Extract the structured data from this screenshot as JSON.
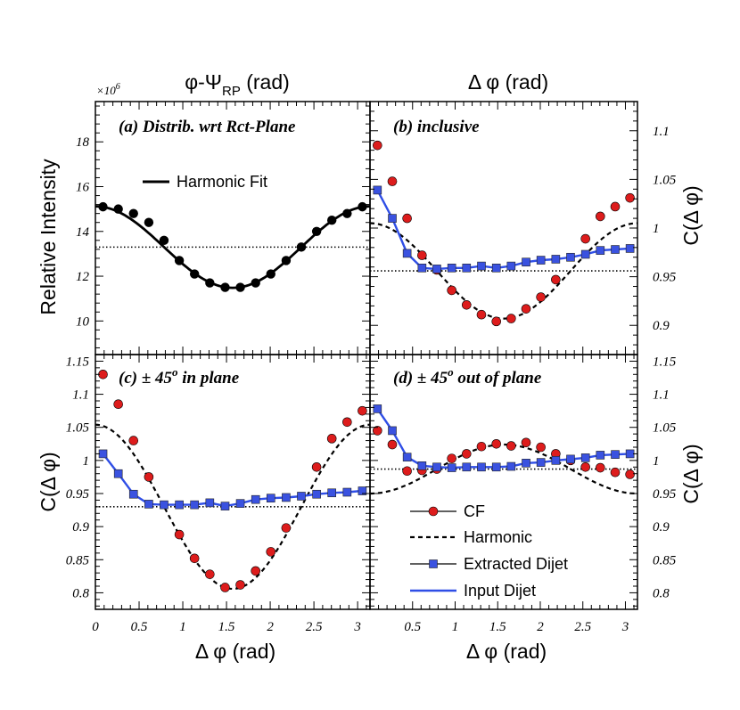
{
  "chart_data": [
    {
      "id": "a",
      "type": "line",
      "title": "(a)  Distrib. wrt Rct-Plane",
      "top_axis_label": "φ-Ψ",
      "top_axis_sub": "RP",
      "top_axis_suffix": " (rad)",
      "ylabel": "Relative Intensity",
      "y_multiplier": "×10",
      "y_multiplier_exp": "6",
      "ylim": [
        8.5,
        19.8
      ],
      "yticks": [
        10,
        12,
        14,
        16,
        18
      ],
      "xlim": [
        0,
        3.1416
      ],
      "legend": "Harmonic Fit",
      "reference_line": 13.3,
      "series": [
        {
          "name": "data",
          "x": [
            0.087,
            0.262,
            0.436,
            0.611,
            0.785,
            0.96,
            1.134,
            1.309,
            1.484,
            1.658,
            1.833,
            2.007,
            2.182,
            2.356,
            2.531,
            2.705,
            2.88,
            3.054
          ],
          "values": [
            15.1,
            15.0,
            14.8,
            14.4,
            13.6,
            12.7,
            12.1,
            11.7,
            11.5,
            11.5,
            11.7,
            12.1,
            12.7,
            13.3,
            14.0,
            14.5,
            14.8,
            15.1
          ]
        }
      ]
    },
    {
      "id": "b",
      "type": "line",
      "title": "(b)  inclusive",
      "top_axis_label": "Δ φ (rad)",
      "right_ylabel": "C(Δ φ)",
      "ylim": [
        0.87,
        1.13
      ],
      "yticks": [
        0.9,
        0.95,
        1,
        1.05,
        1.1
      ],
      "xlim": [
        0,
        3.1416
      ],
      "reference_line": 0.956,
      "harmonic": {
        "mean": 0.956,
        "a": 0.049
      },
      "series": [
        {
          "name": "CF",
          "x": [
            0.087,
            0.262,
            0.436,
            0.611,
            0.785,
            0.96,
            1.134,
            1.309,
            1.484,
            1.658,
            1.833,
            2.007,
            2.182,
            2.356,
            2.531,
            2.705,
            2.88,
            3.054
          ],
          "values": [
            1.085,
            1.048,
            1.01,
            0.972,
            0.957,
            0.936,
            0.921,
            0.911,
            0.904,
            0.907,
            0.917,
            0.929,
            0.947,
            null,
            0.989,
            1.012,
            1.022,
            1.031
          ]
        },
        {
          "name": "Extracted Dijet",
          "x": [
            0.087,
            0.262,
            0.436,
            0.611,
            0.785,
            0.96,
            1.134,
            1.309,
            1.484,
            1.658,
            1.833,
            2.007,
            2.182,
            2.356,
            2.531,
            2.705,
            2.88,
            3.054
          ],
          "values": [
            1.039,
            1.01,
            0.974,
            0.959,
            0.958,
            0.959,
            0.959,
            0.961,
            0.959,
            0.961,
            0.965,
            0.967,
            0.968,
            0.97,
            0.973,
            0.977,
            0.978,
            0.979
          ]
        },
        {
          "name": "Input Dijet",
          "x": [
            0.087,
            0.262,
            0.436,
            0.611,
            0.785,
            0.96,
            1.134,
            1.309,
            1.484,
            1.658,
            1.833,
            2.007,
            2.182,
            2.356,
            2.531,
            2.705,
            2.88,
            3.054
          ],
          "values": [
            1.039,
            1.01,
            0.974,
            0.959,
            0.958,
            0.959,
            0.959,
            0.961,
            0.959,
            0.961,
            0.965,
            0.967,
            0.968,
            0.97,
            0.973,
            0.977,
            0.978,
            0.979
          ]
        }
      ]
    },
    {
      "id": "c",
      "type": "line",
      "title": "(c)  ± 45",
      "title_sup": "o",
      "title_suffix": " in plane",
      "ylabel": "C(Δ φ)",
      "xlabel": "Δ φ (rad)",
      "ylim": [
        0.775,
        1.16
      ],
      "yticks": [
        0.8,
        0.85,
        0.9,
        0.95,
        1,
        1.05,
        1.1,
        1.15
      ],
      "xlim": [
        0,
        3.1416
      ],
      "xticks": [
        0,
        0.5,
        1,
        1.5,
        2,
        2.5,
        3
      ],
      "reference_line": 0.93,
      "harmonic": {
        "mean": 0.93,
        "a": 0.124
      },
      "series": [
        {
          "name": "CF",
          "x": [
            0.087,
            0.262,
            0.436,
            0.611,
            0.785,
            0.96,
            1.134,
            1.309,
            1.484,
            1.658,
            1.833,
            2.007,
            2.182,
            2.356,
            2.531,
            2.705,
            2.88,
            3.054
          ],
          "values": [
            1.13,
            1.085,
            1.03,
            0.975,
            null,
            0.888,
            0.852,
            0.828,
            0.808,
            0.812,
            0.833,
            0.862,
            0.898,
            null,
            0.99,
            1.033,
            1.058,
            1.075
          ]
        },
        {
          "name": "Extracted Dijet",
          "x": [
            0.087,
            0.262,
            0.436,
            0.611,
            0.785,
            0.96,
            1.134,
            1.309,
            1.484,
            1.658,
            1.833,
            2.007,
            2.182,
            2.356,
            2.531,
            2.705,
            2.88,
            3.054
          ],
          "values": [
            1.01,
            0.98,
            0.949,
            0.934,
            0.933,
            0.933,
            0.933,
            0.936,
            0.931,
            0.935,
            0.941,
            0.943,
            0.944,
            0.946,
            0.949,
            0.951,
            0.952,
            0.954
          ]
        },
        {
          "name": "Input Dijet",
          "x": [
            0.087,
            0.262,
            0.436,
            0.611,
            0.785,
            0.96,
            1.134,
            1.309,
            1.484,
            1.658,
            1.833,
            2.007,
            2.182,
            2.356,
            2.531,
            2.705,
            2.88,
            3.054
          ],
          "values": [
            1.01,
            0.98,
            0.949,
            0.934,
            0.933,
            0.933,
            0.933,
            0.936,
            0.931,
            0.935,
            0.941,
            0.943,
            0.944,
            0.946,
            0.949,
            0.951,
            0.952,
            0.954
          ]
        }
      ]
    },
    {
      "id": "d",
      "type": "line",
      "title": "(d)  ± 45",
      "title_sup": "o",
      "title_suffix": " out of plane",
      "right_ylabel": "C(Δ φ)",
      "xlabel": "Δ φ (rad)",
      "ylim": [
        0.775,
        1.16
      ],
      "yticks": [
        0.8,
        0.85,
        0.9,
        0.95,
        1,
        1.05,
        1.1,
        1.15
      ],
      "xlim": [
        0,
        3.1416
      ],
      "xticks": [
        0.5,
        1,
        1.5,
        2,
        2.5,
        3
      ],
      "reference_line": 0.987,
      "harmonic": {
        "mean": 0.987,
        "a": -0.037
      },
      "series": [
        {
          "name": "CF",
          "x": [
            0.087,
            0.262,
            0.436,
            0.611,
            0.785,
            0.96,
            1.134,
            1.309,
            1.484,
            1.658,
            1.833,
            2.007,
            2.182,
            2.356,
            2.531,
            2.705,
            2.88,
            3.054
          ],
          "values": [
            1.045,
            1.024,
            0.984,
            0.985,
            0.987,
            1.003,
            1.01,
            1.021,
            1.025,
            1.022,
            1.027,
            1.02,
            1.01,
            1.0,
            0.99,
            0.989,
            0.982,
            0.979
          ]
        },
        {
          "name": "Extracted Dijet",
          "x": [
            0.087,
            0.262,
            0.436,
            0.611,
            0.785,
            0.96,
            1.134,
            1.309,
            1.484,
            1.658,
            1.833,
            2.007,
            2.182,
            2.356,
            2.531,
            2.705,
            2.88,
            3.054
          ],
          "values": [
            1.078,
            1.045,
            1.005,
            0.992,
            0.99,
            0.989,
            0.99,
            0.99,
            0.99,
            0.991,
            0.996,
            0.997,
            1.0,
            1.002,
            1.004,
            1.008,
            1.009,
            1.01
          ]
        },
        {
          "name": "Input Dijet",
          "x": [
            0.087,
            0.262,
            0.436,
            0.611,
            0.785,
            0.96,
            1.134,
            1.309,
            1.484,
            1.658,
            1.833,
            2.007,
            2.182,
            2.356,
            2.531,
            2.705,
            2.88,
            3.054
          ],
          "values": [
            1.078,
            1.045,
            1.005,
            0.992,
            0.99,
            0.989,
            0.99,
            0.99,
            0.99,
            0.991,
            0.996,
            0.997,
            1.0,
            1.002,
            1.004,
            1.008,
            1.009,
            1.01
          ]
        }
      ],
      "legend": [
        {
          "label": "CF",
          "marker": "circle",
          "line": "solid"
        },
        {
          "label": "Harmonic",
          "marker": "none",
          "line": "dashed"
        },
        {
          "label": "Extracted Dijet",
          "marker": "square",
          "line": "solid"
        },
        {
          "label": "Input Dijet",
          "marker": "none",
          "line": "solid"
        }
      ]
    }
  ],
  "colors": {
    "cf_fill": "#dd1c1c",
    "dijet_fill": "#3a52e0",
    "dijet_line": "#2f4ee6",
    "axis": "#000000"
  }
}
